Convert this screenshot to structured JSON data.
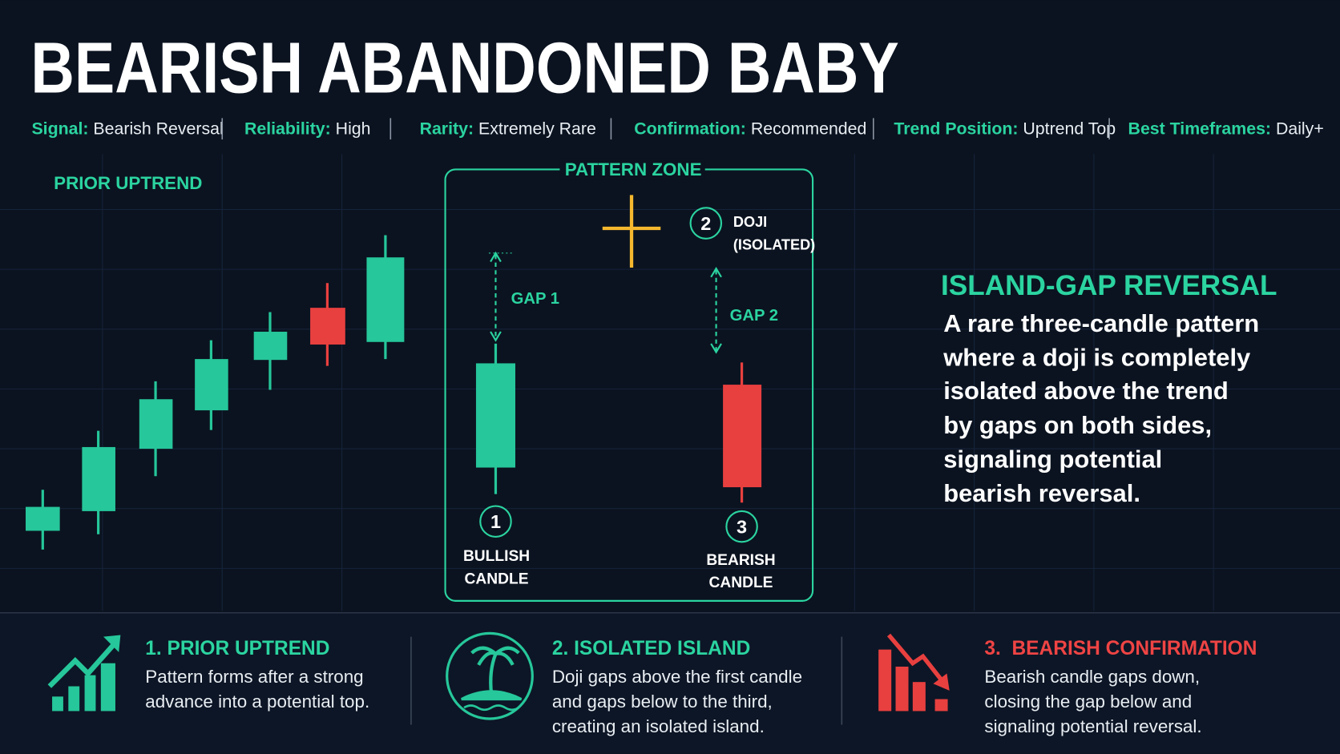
{
  "title": "BEARISH ABANDONED BABY",
  "attributes": [
    {
      "label": "Signal:",
      "value": "Bearish Reversal"
    },
    {
      "label": "Reliability:",
      "value": "High"
    },
    {
      "label": "Rarity:",
      "value": "Extremely Rare"
    },
    {
      "label": "Confirmation:",
      "value": "Recommended"
    },
    {
      "label": "Trend Position:",
      "value": "Uptrend Top"
    },
    {
      "label": "Best Timeframes:",
      "value": "Daily+"
    }
  ],
  "diagram": {
    "trend_label": "PRIOR UPTREND",
    "zone_label": "PATTERN ZONE",
    "gaps": [
      "GAP 1",
      "GAP 2"
    ],
    "candles": [
      {
        "number": "1",
        "label": [
          "BULLISH",
          "CANDLE"
        ]
      },
      {
        "number": "2",
        "label": [
          "DOJI",
          "(ISOLATED)"
        ]
      },
      {
        "number": "3",
        "label": [
          "BEARISH",
          "CANDLE"
        ]
      }
    ]
  },
  "explanation": {
    "heading": "ISLAND-GAP REVERSAL",
    "lines": [
      "A rare three-candle pattern",
      "where a doji is completely",
      "isolated above the trend",
      "by gaps on both sides,",
      "signaling potential",
      "bearish reversal."
    ]
  },
  "steps": [
    {
      "title": "1. PRIOR UPTREND",
      "lines": [
        "Pattern forms after a strong",
        "advance into a potential top."
      ]
    },
    {
      "title": "2. ISOLATED ISLAND",
      "lines": [
        "Doji gaps above the first candle",
        "and gaps below to the third,",
        "creating an isolated island."
      ]
    },
    {
      "title": "3.  BEARISH CONFIRMATION",
      "lines": [
        "Bearish candle gaps down,",
        "closing the gap below and",
        "signaling potential reversal."
      ]
    }
  ]
}
